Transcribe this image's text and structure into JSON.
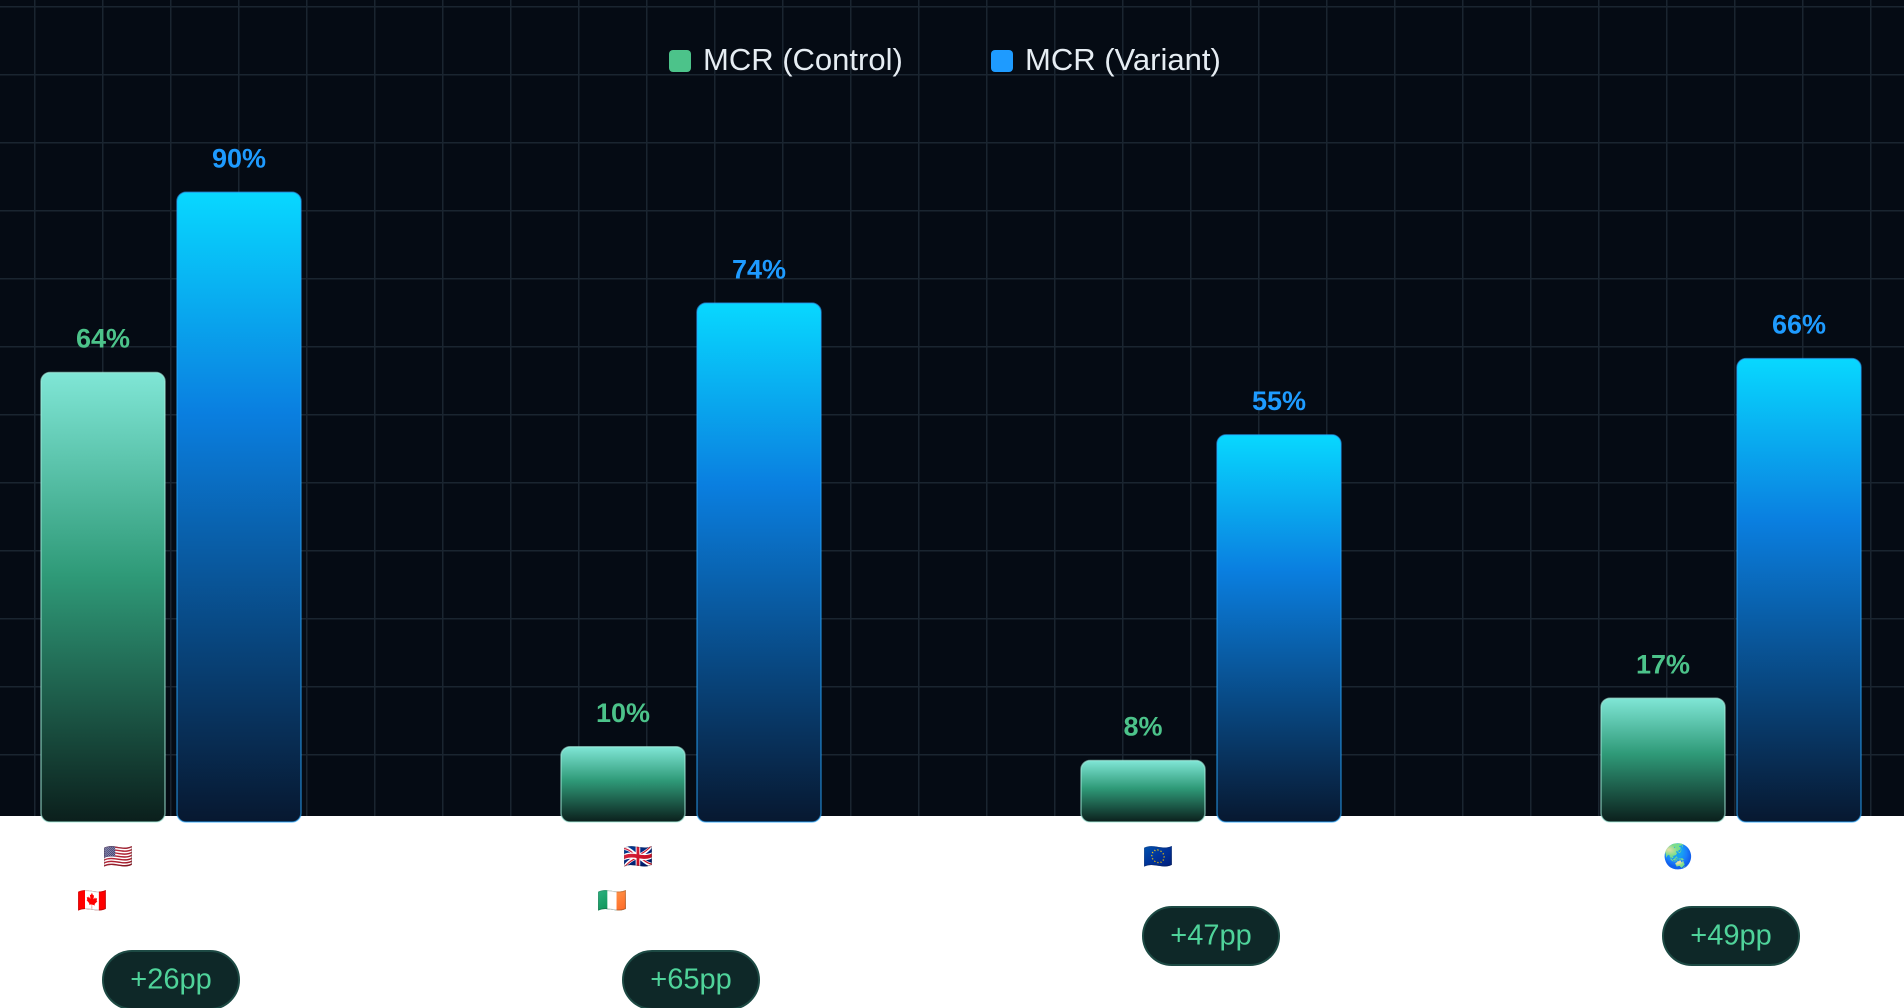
{
  "chart_data": {
    "type": "bar",
    "categories": [
      [
        "🇺🇸",
        "🇨🇦"
      ],
      [
        "🇬🇧",
        "🇮🇪"
      ],
      [
        "🇪🇺"
      ],
      [
        "🌏"
      ]
    ],
    "series": [
      {
        "name": "MCR (Control)",
        "color": "#4cc38a",
        "values": [
          64,
          10,
          8,
          17
        ],
        "value_labels": [
          "64%",
          "10%",
          "8%",
          "17%"
        ]
      },
      {
        "name": "MCR (Variant)",
        "color": "#1e9bff",
        "values": [
          90,
          74,
          55,
          66
        ],
        "value_labels": [
          "90%",
          "74%",
          "55%",
          "66%"
        ]
      }
    ],
    "annotations": [
      "+26pp",
      "+65pp",
      "+47pp",
      "+49pp"
    ],
    "ylim": [
      0,
      100
    ]
  }
}
